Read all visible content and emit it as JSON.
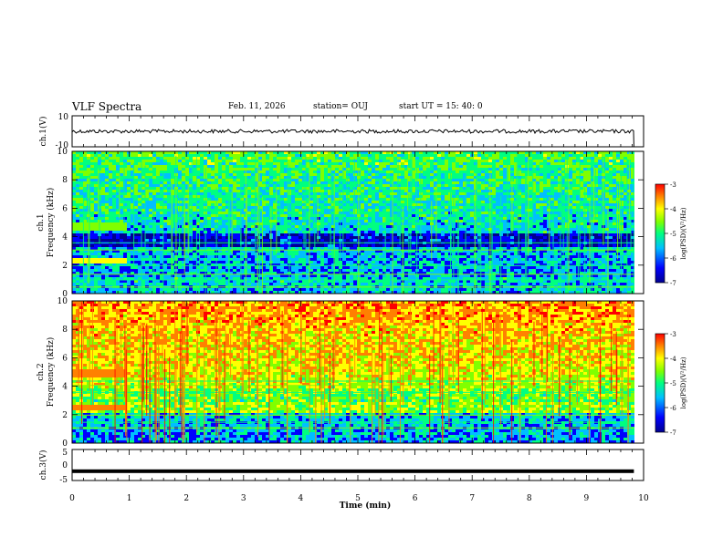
{
  "header": {
    "title": "VLF Spectra",
    "date": "Feb. 11, 2026",
    "station": "station= OUJ",
    "start": "start  UT  =   15: 40: 0"
  },
  "chart_data": [
    {
      "type": "line",
      "name": "ch1-waveform",
      "ylabel": "ch.1(V)",
      "ylim": [
        -10,
        10
      ],
      "yticks": [
        "10",
        "-10"
      ],
      "xlim": [
        0,
        10
      ],
      "level": 0,
      "end_min": 9.83
    },
    {
      "type": "heatmap",
      "name": "ch1-spectrogram",
      "ylabel": "Frequency (kHz)",
      "channel": "ch.1",
      "ylim": [
        0,
        10
      ],
      "yticks": [
        "0",
        "2",
        "4",
        "6",
        "8",
        "10"
      ],
      "xlim": [
        0,
        10
      ],
      "end_min": 9.83,
      "colorbar": {
        "label": "log(PSD)(V²/Hz)",
        "range": [
          -7,
          -3
        ],
        "ticks": [
          "-3",
          "-4",
          "-5",
          "-6",
          "-7"
        ]
      }
    },
    {
      "type": "heatmap",
      "name": "ch2-spectrogram",
      "ylabel": "Frequency (kHz)",
      "channel": "ch.2",
      "ylim": [
        0,
        10
      ],
      "yticks": [
        "0",
        "2",
        "4",
        "6",
        "8",
        "10"
      ],
      "xlim": [
        0,
        10
      ],
      "end_min": 9.83,
      "colorbar": {
        "label": "log(PSD)(V²/Hz)",
        "range": [
          -7,
          -3
        ],
        "ticks": [
          "-3",
          "-4",
          "-5",
          "-6",
          "-7"
        ]
      }
    },
    {
      "type": "line",
      "name": "ch3-waveform",
      "ylabel": "ch.3(V)",
      "ylim": [
        -5,
        5
      ],
      "yticks": [
        "5",
        "0",
        "-5"
      ],
      "xlim": [
        0,
        10
      ],
      "level": -2,
      "end_min": 9.83
    }
  ],
  "xaxis": {
    "label": "Time (min)",
    "ticks": [
      "0",
      "1",
      "2",
      "3",
      "4",
      "5",
      "6",
      "7",
      "8",
      "9",
      "10"
    ]
  },
  "colors": {
    "colormap": [
      "#00008f",
      "#0000ff",
      "#00bfff",
      "#00ff80",
      "#80ff00",
      "#ffff00",
      "#ff8000",
      "#ff0000"
    ]
  }
}
